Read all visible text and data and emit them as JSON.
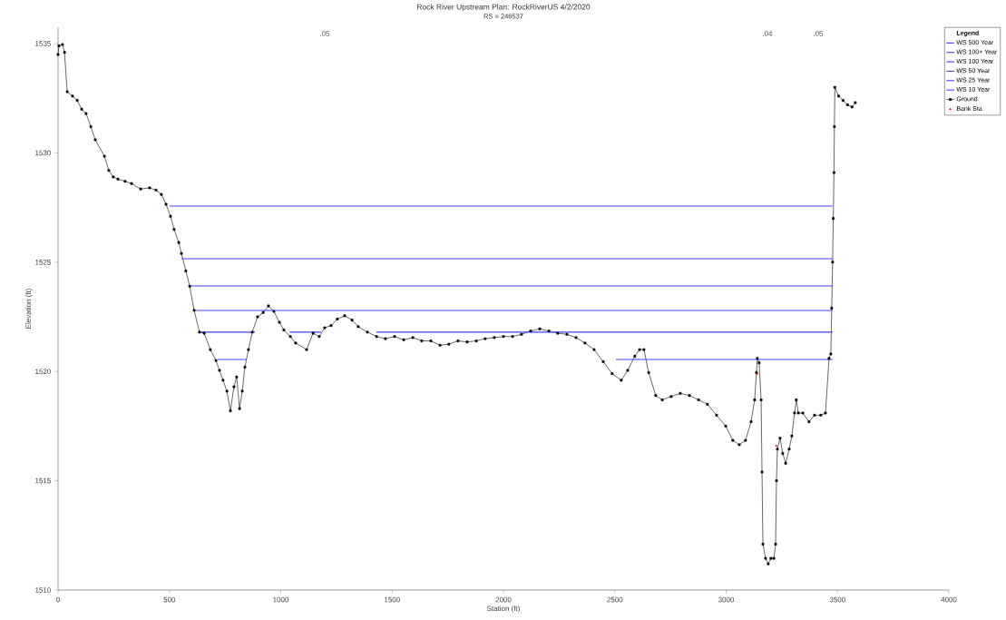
{
  "chart_data": {
    "type": "line",
    "title": "Rock River Upstream    Plan: RockRiverUS    4/2/2020",
    "subtitle": "RS = 246537",
    "xlabel": "Station (ft)",
    "ylabel": "Elevation (ft)",
    "legend_title": "Legend",
    "legend": "right",
    "grid": false,
    "xlim": [
      0,
      4000
    ],
    "ylim": [
      1510,
      1535.75
    ],
    "xticks": [
      0,
      500,
      1000,
      1500,
      2000,
      2500,
      3000,
      3500,
      4000
    ],
    "yticks": [
      1510,
      1515,
      1520,
      1525,
      1530,
      1535
    ],
    "series": [
      {
        "name": "WS 500 Year",
        "type": "line",
        "color": "#4040ff",
        "marker": "none",
        "x": [
          501,
          3478
        ],
        "values": [
          1527.57,
          1527.57
        ]
      },
      {
        "name": "WS 100+ Year",
        "type": "line",
        "color": "#4040ff",
        "marker": "none",
        "x": [
          554,
          3478
        ],
        "values": [
          1525.16,
          1525.16
        ]
      },
      {
        "name": "WS 100 Year",
        "type": "line",
        "color": "#4040ff",
        "marker": "none",
        "x": [
          586,
          3478
        ],
        "values": [
          1523.91,
          1523.91
        ]
      },
      {
        "name": "WS 50 Year",
        "type": "line",
        "color": "#4040ff",
        "marker": "none",
        "x": [
          611,
          3478
        ],
        "values": [
          1522.79,
          1522.79
        ]
      },
      {
        "name": "WS 25 Year",
        "type": "line",
        "color": "#4040ff",
        "marker": "none",
        "x": [
          640,
          884,
          960,
          1040,
          1180,
          1300,
          1430,
          3478
        ],
        "values": [
          1521.8,
          1521.8,
          null,
          1521.8,
          1521.8,
          null,
          1521.8,
          1521.8
        ]
      },
      {
        "name": "WS 10 Year",
        "type": "line",
        "color": "#4040ff",
        "marker": "none",
        "x": [
          717,
          847,
          1700,
          2505,
          3478
        ],
        "values": [
          1520.55,
          1520.55,
          null,
          1520.55,
          1520.55
        ]
      },
      {
        "name": "Ground",
        "color": "#000000",
        "marker": "square",
        "x": [
          0,
          4,
          20,
          29,
          41,
          65,
          86,
          106,
          126,
          147,
          167,
          208,
          228,
          248,
          269,
          301,
          330,
          371,
          411,
          440,
          464,
          485,
          505,
          521,
          542,
          554,
          574,
          591,
          611,
          635,
          656,
          684,
          709,
          725,
          741,
          758,
          774,
          790,
          802,
          815,
          827,
          839,
          855,
          872,
          896,
          921,
          945,
          969,
          994,
          1014,
          1043,
          1067,
          1116,
          1145,
          1173,
          1197,
          1226,
          1254,
          1287,
          1320,
          1348,
          1389,
          1430,
          1470,
          1511,
          1552,
          1593,
          1633,
          1674,
          1715,
          1755,
          1796,
          1837,
          1878,
          1918,
          1959,
          2000,
          2041,
          2081,
          2122,
          2163,
          2204,
          2244,
          2285,
          2326,
          2366,
          2407,
          2448,
          2488,
          2529,
          2558,
          2590,
          2611,
          2631,
          2652,
          2684,
          2713,
          2753,
          2794,
          2835,
          2876,
          2916,
          2957,
          2998,
          3030,
          3059,
          3087,
          3112,
          3128,
          3136,
          3140,
          3148,
          3157,
          3161,
          3165,
          3177,
          3189,
          3201,
          3214,
          3222,
          3226,
          3230,
          3242,
          3254,
          3267,
          3283,
          3295,
          3307,
          3315,
          3324,
          3344,
          3372,
          3397,
          3425,
          3446,
          3462,
          3470,
          3474,
          3478,
          3481,
          3484,
          3486,
          3488,
          3505,
          3525,
          3545,
          3565,
          3580
        ],
        "values": [
          1534.5,
          1534.9,
          1534.96,
          1534.6,
          1532.8,
          1532.6,
          1532.4,
          1532.0,
          1531.8,
          1531.2,
          1530.6,
          1529.85,
          1529.2,
          1528.9,
          1528.8,
          1528.7,
          1528.6,
          1528.35,
          1528.4,
          1528.3,
          1528.1,
          1527.65,
          1527.1,
          1526.5,
          1525.9,
          1525.4,
          1524.6,
          1523.9,
          1522.8,
          1521.8,
          1521.75,
          1521.0,
          1520.5,
          1520.05,
          1519.6,
          1519.1,
          1518.2,
          1519.3,
          1519.75,
          1518.3,
          1519.1,
          1520.2,
          1521.0,
          1521.8,
          1522.5,
          1522.7,
          1523.0,
          1522.75,
          1522.25,
          1521.9,
          1521.6,
          1521.3,
          1521.0,
          1521.75,
          1521.6,
          1522.0,
          1522.1,
          1522.4,
          1522.55,
          1522.35,
          1522.05,
          1521.8,
          1521.6,
          1521.5,
          1521.6,
          1521.45,
          1521.55,
          1521.4,
          1521.4,
          1521.2,
          1521.25,
          1521.4,
          1521.35,
          1521.4,
          1521.5,
          1521.55,
          1521.6,
          1521.6,
          1521.7,
          1521.85,
          1521.95,
          1521.85,
          1521.75,
          1521.7,
          1521.55,
          1521.3,
          1521.0,
          1520.45,
          1519.9,
          1519.6,
          1520.05,
          1520.7,
          1521.0,
          1521.0,
          1519.95,
          1518.9,
          1518.7,
          1518.85,
          1519.0,
          1518.9,
          1518.7,
          1518.5,
          1518.0,
          1517.5,
          1516.85,
          1516.65,
          1516.85,
          1517.7,
          1518.7,
          1519.95,
          1520.6,
          1520.4,
          1518.7,
          1515.4,
          1512.1,
          1511.45,
          1511.2,
          1511.45,
          1511.45,
          1512.1,
          1515.0,
          1516.45,
          1516.95,
          1516.25,
          1515.8,
          1516.45,
          1517.05,
          1518.1,
          1518.7,
          1518.1,
          1518.1,
          1517.7,
          1518.0,
          1518.0,
          1518.1,
          1520.6,
          1520.8,
          1522.9,
          1525.0,
          1527.0,
          1529.1,
          1531.2,
          1533.0,
          1532.6,
          1532.4,
          1532.2,
          1532.1,
          1532.3
        ]
      },
      {
        "name": "Bank Sta",
        "type": "scatter",
        "color": "#ff0000",
        "marker": "triangle",
        "x": [
          3140,
          3225
        ],
        "values": [
          1519.9,
          1516.6
        ]
      }
    ],
    "annotations": [
      {
        "text": ".05",
        "x": 1197,
        "y": 1535.46
      },
      {
        "text": ".04",
        "x": 3185,
        "y": 1535.46
      },
      {
        "text": ".05",
        "x": 3413,
        "y": 1535.46
      }
    ]
  }
}
